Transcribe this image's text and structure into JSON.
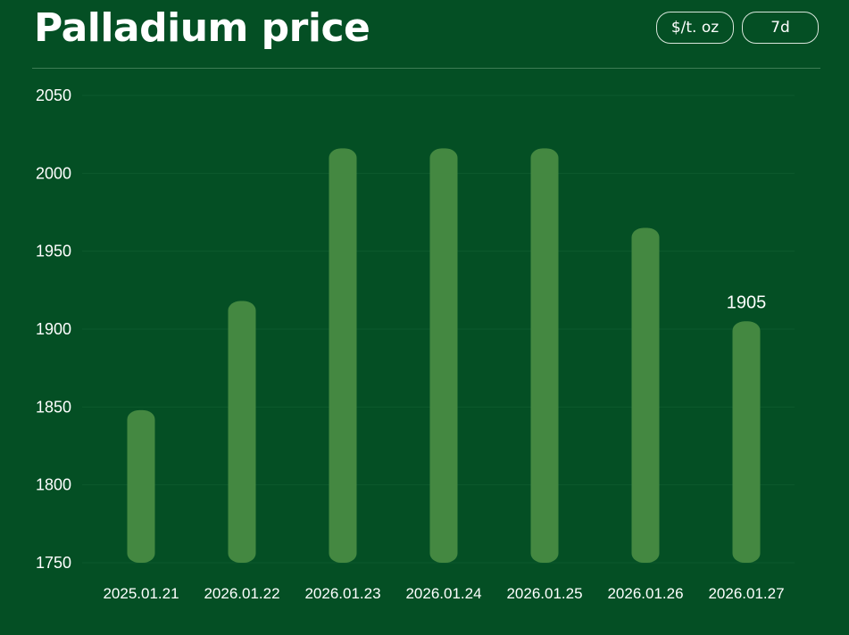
{
  "header": {
    "title": "Palladium price",
    "unit_button": "$/t. oz",
    "range_button": "7d"
  },
  "colors": {
    "background": "#044f24",
    "bar": "#448841",
    "grid": "#0d5a2e",
    "text": "#ffffff"
  },
  "chart_data": {
    "type": "bar",
    "title": "",
    "xlabel": "",
    "ylabel": "",
    "categories": [
      "2025.01.21",
      "2026.01.22",
      "2026.01.23",
      "2026.01.24",
      "2026.01.25",
      "2026.01.26",
      "2026.01.27"
    ],
    "values": [
      1848,
      1918,
      2016,
      2016,
      2016,
      1965,
      1905
    ],
    "ylim": [
      1750,
      2050
    ],
    "yticks": [
      1750,
      1800,
      1850,
      1900,
      1950,
      2000,
      2050
    ],
    "highlight_label": {
      "index": 6,
      "text": "1905"
    },
    "grid": true,
    "legend": "none"
  }
}
